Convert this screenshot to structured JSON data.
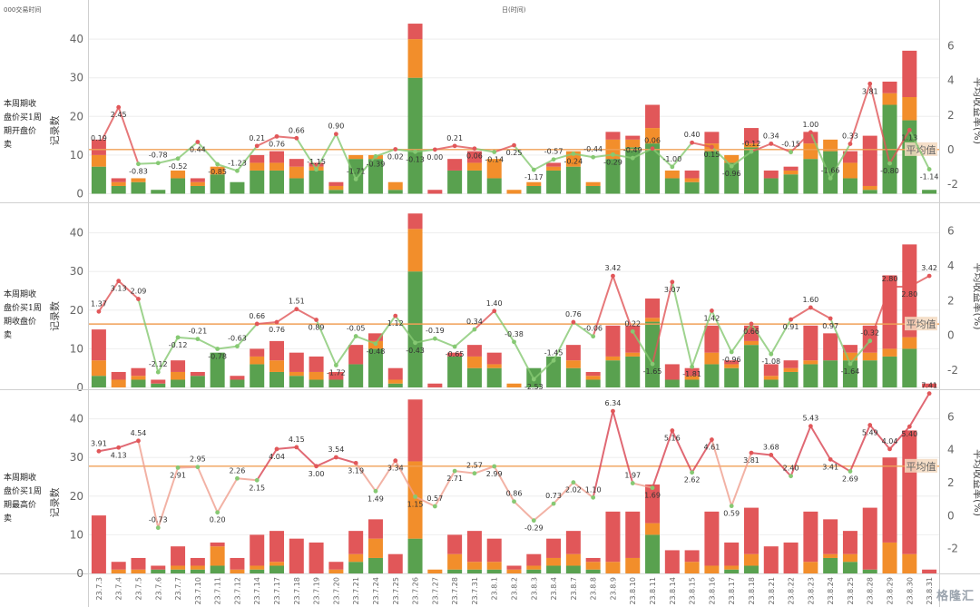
{
  "header": {
    "left_label": "000交易时间",
    "center_label": "日(时间)"
  },
  "watermark": "格隆汇",
  "colors": {
    "green": "#59a14f",
    "orange": "#f28e2b",
    "red": "#e15759",
    "avg_line": "#f0a057",
    "avg_label_bg": "#f3d9c0",
    "line_pos": "#e15759",
    "line_neg": "#86c973"
  },
  "chart_data": {
    "type": "bar",
    "categories": [
      "23.7.3",
      "23.7.4",
      "23.7.5",
      "23.7.6",
      "23.7.7",
      "23.7.10",
      "23.7.11",
      "23.7.12",
      "23.7.14",
      "23.7.17",
      "23.7.18",
      "23.7.19",
      "23.7.20",
      "23.7.21",
      "23.7.24",
      "23.7.25",
      "23.7.26",
      "23.7.27",
      "23.7.28",
      "23.7.31",
      "23.8.1",
      "23.8.2",
      "23.8.3",
      "23.8.4",
      "23.8.7",
      "23.8.8",
      "23.8.9",
      "23.8.10",
      "23.8.11",
      "23.8.14",
      "23.8.15",
      "23.8.16",
      "23.8.17",
      "23.8.18",
      "23.8.21",
      "23.8.22",
      "23.8.23",
      "23.8.24",
      "23.8.25",
      "23.8.28",
      "23.8.29",
      "23.8.30",
      "23.8.31"
    ],
    "ylabel_left": "记录数",
    "ylabel_right": "平均收益率(%)",
    "avg_label": "平均值",
    "yticks_left": [
      0,
      10,
      20,
      30,
      40
    ],
    "yticks_right": [
      -2,
      0,
      2,
      4,
      6
    ],
    "panels": [
      {
        "row_label": "本周期收盘价买1周期开盘价卖",
        "avg_value": 0,
        "ylim_right": [
          -3.0,
          7.5
        ],
        "bars": [
          [
            7,
            3,
            4
          ],
          [
            2,
            1,
            1
          ],
          [
            3,
            1,
            0
          ],
          [
            1,
            0,
            0
          ],
          [
            4,
            2,
            0
          ],
          [
            2,
            1,
            1
          ],
          [
            5,
            2,
            0
          ],
          [
            3,
            0,
            0
          ],
          [
            6,
            2,
            2
          ],
          [
            6,
            2,
            3
          ],
          [
            4,
            3,
            2
          ],
          [
            6,
            1,
            1
          ],
          [
            1,
            1,
            1
          ],
          [
            9,
            1,
            0
          ],
          [
            9,
            1,
            0
          ],
          [
            1,
            2,
            0
          ],
          [
            30,
            10,
            4
          ],
          [
            0,
            0,
            1
          ],
          [
            6,
            0,
            3
          ],
          [
            6,
            2,
            3
          ],
          [
            4,
            5,
            0
          ],
          [
            0,
            1,
            0
          ],
          [
            2,
            1,
            0
          ],
          [
            6,
            1,
            1
          ],
          [
            7,
            4,
            0
          ],
          [
            2,
            1,
            0
          ],
          [
            9,
            5,
            2
          ],
          [
            12,
            2,
            1
          ],
          [
            13,
            4,
            6
          ],
          [
            4,
            2,
            0
          ],
          [
            3,
            1,
            2
          ],
          [
            11,
            2,
            3
          ],
          [
            8,
            2,
            0
          ],
          [
            12,
            1,
            4
          ],
          [
            4,
            0,
            2
          ],
          [
            5,
            1,
            1
          ],
          [
            9,
            4,
            3
          ],
          [
            11,
            3,
            0
          ],
          [
            4,
            4,
            3
          ],
          [
            1,
            1,
            13
          ],
          [
            23,
            3,
            3
          ],
          [
            19,
            6,
            12
          ],
          [
            1,
            0,
            0
          ]
        ],
        "line": [
          0.19,
          2.45,
          -0.83,
          -0.78,
          -0.52,
          0.44,
          -0.85,
          -1.23,
          0.21,
          0.76,
          0.66,
          -1.15,
          0.9,
          -1.71,
          -0.39,
          0.02,
          -0.13,
          0.0,
          0.21,
          0.06,
          -0.14,
          0.25,
          -1.17,
          -0.57,
          -0.24,
          -0.44,
          -0.29,
          -0.49,
          0.06,
          -1.0,
          0.4,
          0.15,
          -0.96,
          -0.12,
          0.34,
          -0.15,
          1.0,
          -1.66,
          0.33,
          3.81,
          -0.8,
          1.13,
          -1.14
        ]
      },
      {
        "row_label": "本周期收盘价买1周期收盘价卖",
        "avg_value": 0.65,
        "ylim_right": [
          -3.0,
          7.5
        ],
        "bars": [
          [
            3,
            4,
            8
          ],
          [
            0,
            2,
            2
          ],
          [
            2,
            1,
            2
          ],
          [
            1,
            0,
            1
          ],
          [
            2,
            2,
            3
          ],
          [
            3,
            0,
            1
          ],
          [
            9,
            0,
            0
          ],
          [
            2,
            0,
            1
          ],
          [
            6,
            2,
            2
          ],
          [
            4,
            3,
            5
          ],
          [
            3,
            1,
            5
          ],
          [
            2,
            2,
            4
          ],
          [
            2,
            0,
            2
          ],
          [
            6,
            0,
            5
          ],
          [
            10,
            2,
            2
          ],
          [
            1,
            1,
            3
          ],
          [
            30,
            11,
            4
          ],
          [
            0,
            0,
            1
          ],
          [
            8,
            0,
            1
          ],
          [
            5,
            3,
            3
          ],
          [
            5,
            1,
            3
          ],
          [
            0,
            1,
            0
          ],
          [
            5,
            0,
            0
          ],
          [
            8,
            0,
            0
          ],
          [
            5,
            2,
            4
          ],
          [
            2,
            1,
            1
          ],
          [
            7,
            1,
            8
          ],
          [
            8,
            1,
            7
          ],
          [
            17,
            1,
            5
          ],
          [
            2,
            0,
            4
          ],
          [
            2,
            1,
            2
          ],
          [
            6,
            3,
            7
          ],
          [
            5,
            1,
            1
          ],
          [
            11,
            1,
            4
          ],
          [
            2,
            1,
            3
          ],
          [
            4,
            1,
            2
          ],
          [
            6,
            1,
            9
          ],
          [
            7,
            0,
            7
          ],
          [
            7,
            2,
            2
          ],
          [
            7,
            2,
            7
          ],
          [
            8,
            2,
            19
          ],
          [
            10,
            3,
            24
          ],
          [
            0,
            0,
            1
          ]
        ],
        "line": [
          1.37,
          3.13,
          2.09,
          -2.12,
          -0.12,
          -0.21,
          -0.78,
          -0.63,
          0.66,
          0.76,
          1.51,
          0.89,
          -1.72,
          -0.05,
          -0.48,
          1.12,
          -0.43,
          -0.19,
          -0.65,
          0.34,
          1.4,
          -0.38,
          -2.53,
          -1.45,
          0.76,
          -0.06,
          3.42,
          0.22,
          -1.65,
          3.07,
          -1.81,
          1.42,
          -0.96,
          0.66,
          -1.08,
          0.91,
          1.6,
          0.97,
          -1.64,
          -0.32,
          2.8,
          2.8,
          3.42
        ]
      },
      {
        "row_label": "本周期收盘价买1周期最高价卖",
        "avg_value": 3.0,
        "ylim_right": [
          -3.5,
          7.5
        ],
        "bars": [
          [
            0,
            0,
            15
          ],
          [
            0,
            1,
            2
          ],
          [
            0,
            1,
            3
          ],
          [
            1,
            0,
            1
          ],
          [
            1,
            1,
            5
          ],
          [
            1,
            1,
            2
          ],
          [
            2,
            5,
            1
          ],
          [
            0,
            1,
            3
          ],
          [
            1,
            1,
            8
          ],
          [
            2,
            1,
            8
          ],
          [
            0,
            0,
            9
          ],
          [
            0,
            0,
            8
          ],
          [
            0,
            1,
            2
          ],
          [
            3,
            2,
            6
          ],
          [
            4,
            5,
            5
          ],
          [
            0,
            0,
            5
          ],
          [
            9,
            20,
            16
          ],
          [
            0,
            1,
            0
          ],
          [
            1,
            4,
            5
          ],
          [
            1,
            2,
            8
          ],
          [
            1,
            2,
            6
          ],
          [
            0,
            1,
            1
          ],
          [
            1,
            1,
            3
          ],
          [
            2,
            2,
            5
          ],
          [
            2,
            3,
            6
          ],
          [
            1,
            2,
            1
          ],
          [
            0,
            3,
            13
          ],
          [
            0,
            4,
            12
          ],
          [
            10,
            3,
            10
          ],
          [
            0,
            0,
            6
          ],
          [
            0,
            3,
            3
          ],
          [
            0,
            2,
            14
          ],
          [
            1,
            1,
            6
          ],
          [
            2,
            3,
            12
          ],
          [
            0,
            0,
            7
          ],
          [
            0,
            0,
            8
          ],
          [
            0,
            3,
            13
          ],
          [
            4,
            1,
            9
          ],
          [
            3,
            2,
            6
          ],
          [
            1,
            0,
            16
          ],
          [
            0,
            8,
            22
          ],
          [
            0,
            5,
            32
          ],
          [
            0,
            0,
            1
          ]
        ],
        "line": [
          3.91,
          4.13,
          4.54,
          -0.73,
          2.91,
          2.95,
          0.2,
          2.26,
          2.15,
          4.04,
          4.15,
          3.0,
          3.54,
          3.19,
          1.49,
          3.34,
          1.15,
          0.57,
          2.71,
          2.57,
          2.99,
          0.86,
          -0.29,
          0.73,
          2.02,
          1.1,
          6.34,
          1.97,
          1.69,
          5.16,
          2.62,
          4.61,
          0.59,
          3.81,
          3.68,
          2.4,
          5.43,
          3.41,
          2.69,
          5.49,
          4.04,
          5.4,
          7.41
        ]
      }
    ]
  }
}
